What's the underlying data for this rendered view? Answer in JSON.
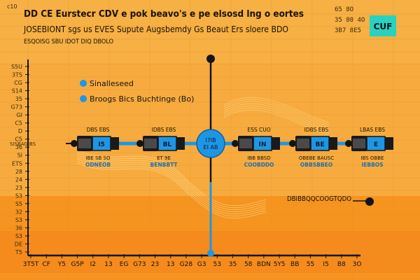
{
  "header": {
    "line1": "DD CE Eurstecr CDV e pok beavo's e pe elsosd lng o eortes",
    "line2": "JOSEBIONT sgs us EVES Supute Augsbemdy Gs Beaut Ers sloere BDO",
    "line3": "ESQOISG SBU IDOT DIQ DBOLO",
    "top_left_tag": "c10",
    "right_nums": [
      "65 8O",
      "35 80 4O",
      "3B7 8E5"
    ],
    "badge": "CUF"
  },
  "legend": {
    "items": [
      {
        "label": "Sinalleseed",
        "color": "#1e96e6"
      },
      {
        "label": "Broogs Bics Buchtinge (Bo)",
        "color": "#1e96e6"
      }
    ]
  },
  "annotation": {
    "label": "DBIBBQQCOOGTQDO"
  },
  "chart_data": {
    "type": "line",
    "title": "DD CE Eurstecr CDV e pok beavo's e pe elsosd lng o eortes",
    "xlabel": "",
    "ylabel": "",
    "x_ticks": [
      "3T5T",
      "CF",
      "Y5",
      "G5P",
      "I2",
      "13",
      "EG",
      "G73",
      "23",
      "13",
      "G28",
      "G3",
      "53",
      "35",
      "58",
      "BDN",
      "5Y5",
      "BB",
      "55",
      "I5",
      "B8",
      "3O"
    ],
    "y_ticks": [
      "S5U",
      "3TS",
      "CG",
      "S14",
      "35",
      "G73",
      "GI",
      "C5",
      "D",
      "C5",
      "36",
      "SI",
      "ETS",
      "28",
      "24",
      "23",
      "S3",
      "S5",
      "32",
      "S3",
      "36",
      "S3",
      "DE",
      "T5"
    ],
    "side_label": "SISBAGIBS",
    "series": [
      {
        "color": "#1e96e6",
        "nodes": [
          {
            "top": "DBS EBS",
            "label": "I5",
            "sub1": "IBE SB SO",
            "sub2": "ODNEOB"
          },
          {
            "top": "IDBS EBS",
            "label": "BL",
            "sub1": "ET 9E",
            "sub2": "BENBBTT"
          },
          {
            "top": "",
            "label": "I7IB\nEI AB",
            "sub1": "",
            "sub2": ""
          },
          {
            "top": "ESS CUO",
            "label": "IN",
            "sub1": "IBB BBSD",
            "sub2": "COOBDDO"
          },
          {
            "top": "IDBS EBS",
            "label": "BE",
            "sub1": "OBEBE BAUSC",
            "sub2": "OBBSBBEO"
          },
          {
            "top": "LBAS EBS",
            "label": "E",
            "sub1": "IBS OBBE",
            "sub2": "IEBBOS"
          }
        ]
      }
    ],
    "markers": [
      {
        "label": "DBIBBQQCOOGTQDO",
        "type": "point"
      }
    ],
    "colors": {
      "background": "#f6b043",
      "band": "#f5941f",
      "accent": "#1e96e6",
      "axis": "#141414",
      "badge": "#28d2c0"
    },
    "grid": true
  }
}
